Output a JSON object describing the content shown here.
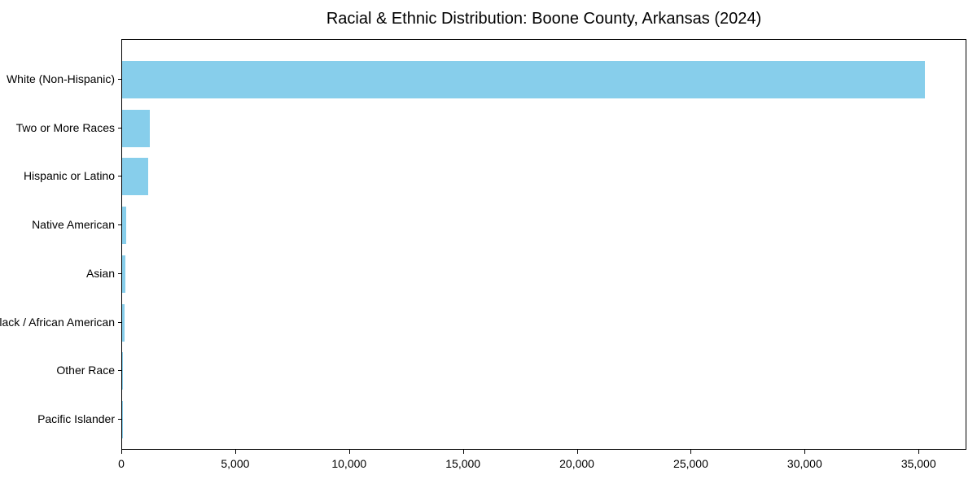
{
  "chart_data": {
    "type": "bar",
    "orientation": "horizontal",
    "title": "Racial & Ethnic Distribution: Boone County, Arkansas (2024)",
    "categories": [
      "White (Non-Hispanic)",
      "Two or More Races",
      "Hispanic or Latino",
      "Native American",
      "Asian",
      "Black / African American",
      "Other Race",
      "Pacific Islander"
    ],
    "values": [
      35250,
      1200,
      1150,
      180,
      150,
      120,
      40,
      15
    ],
    "xlabel": "",
    "ylabel": "",
    "xlim": [
      0,
      37100
    ],
    "x_ticks": [
      0,
      5000,
      10000,
      15000,
      20000,
      25000,
      30000,
      35000
    ],
    "x_tick_labels": [
      "0",
      "5,000",
      "10,000",
      "15,000",
      "20,000",
      "25,000",
      "30,000",
      "35,000"
    ],
    "bar_color": "#87CEEB",
    "axis_color": "#000000",
    "text_color": "#000000",
    "background_color": "#ffffff",
    "grid": false,
    "legend": null
  }
}
